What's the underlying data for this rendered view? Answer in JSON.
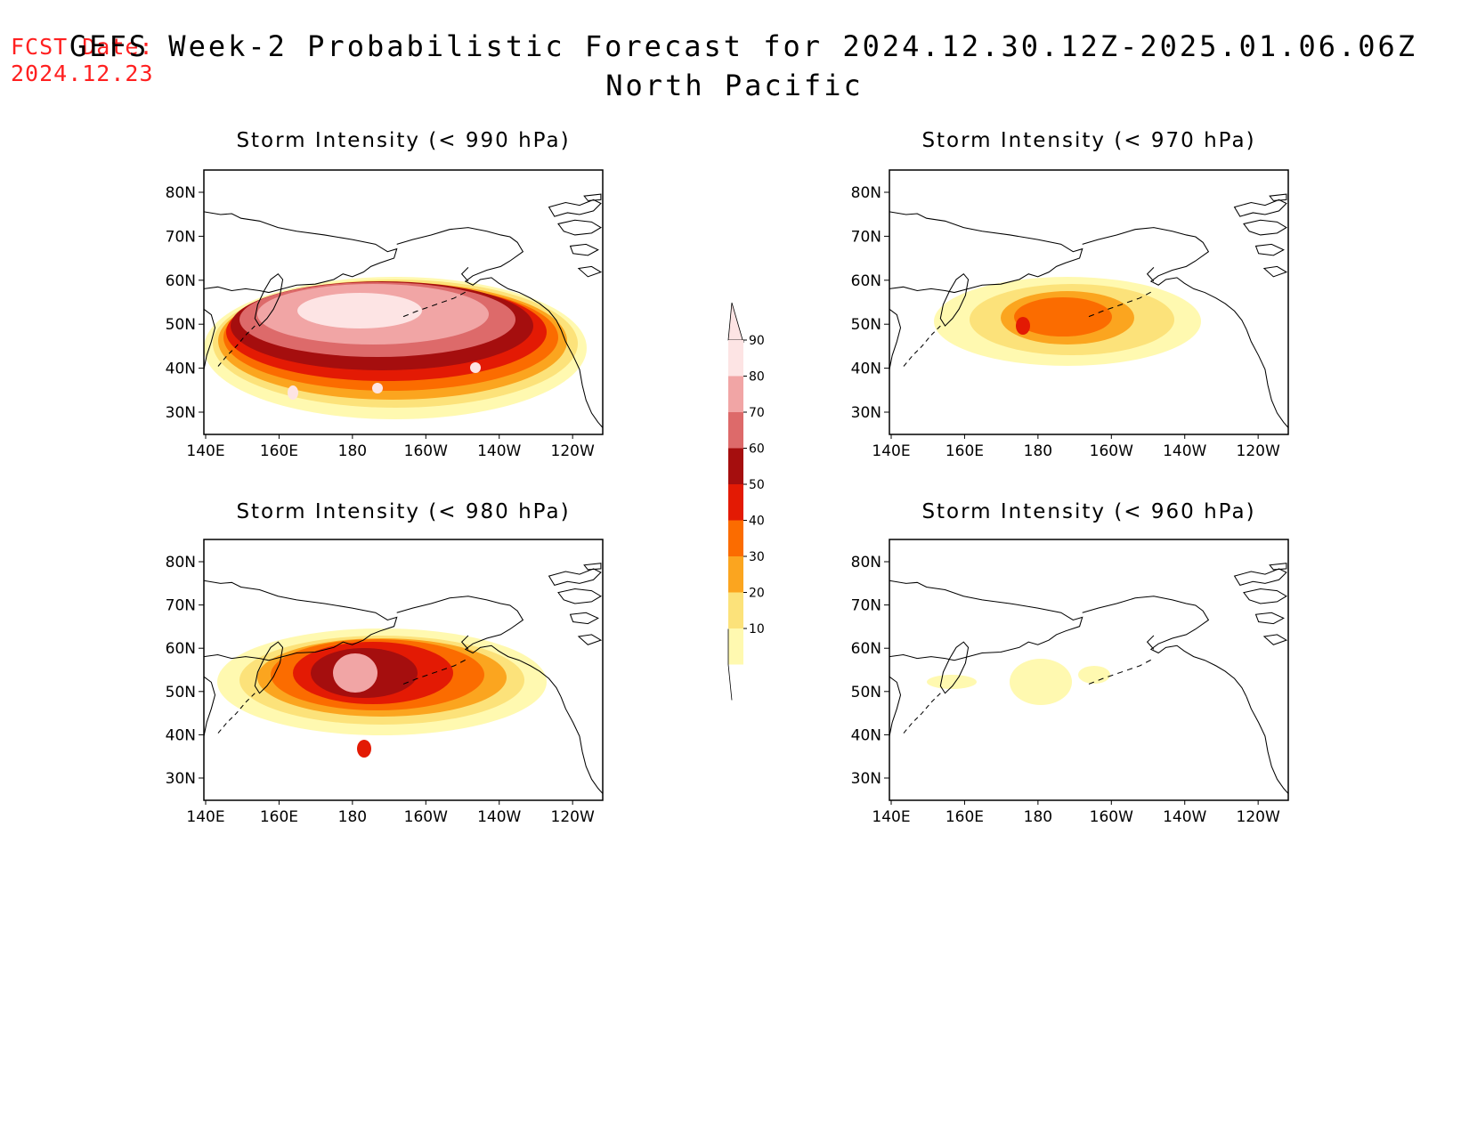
{
  "header": {
    "fcst_label": "FCST Date:",
    "fcst_date": "2024.12.23",
    "title": "GEFS Week-2 Probabilistic Forecast for 2024.12.30.12Z-2025.01.06.06Z",
    "region": "North Pacific"
  },
  "axes": {
    "lat_labels": [
      "80N",
      "70N",
      "60N",
      "50N",
      "40N",
      "30N"
    ],
    "lon_labels": [
      "140E",
      "160E",
      "180",
      "160W",
      "140W",
      "120W"
    ]
  },
  "colorbar": {
    "levels": [
      10,
      20,
      30,
      40,
      50,
      60,
      70,
      80,
      90
    ],
    "colors": [
      "#fff9b0",
      "#fce27a",
      "#fba51f",
      "#fb6c00",
      "#e31a04",
      "#a50e0e",
      "#dd6a6a",
      "#f1a5a5",
      "#fde4e4"
    ]
  },
  "panels": [
    {
      "title": "Storm Intensity (< 990 hPa)"
    },
    {
      "title": "Storm Intensity (< 970 hPa)"
    },
    {
      "title": "Storm Intensity (< 980 hPa)"
    },
    {
      "title": "Storm Intensity (< 960 hPa)"
    }
  ]
}
